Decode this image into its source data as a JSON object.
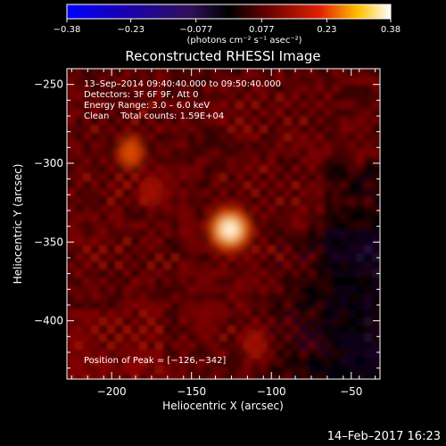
{
  "chart_data": {
    "type": "heatmap",
    "title": "Reconstructed RHESSI Image",
    "xlabel": "Heliocentric X (arcsec)",
    "ylabel": "Heliocentric Y (arcsec)",
    "xlim": [
      -228,
      -32
    ],
    "ylim": [
      -437,
      -240
    ],
    "x_ticks": [
      -200,
      -150,
      -100,
      -50
    ],
    "y_ticks": [
      -250,
      -300,
      -350,
      -400
    ],
    "x_tick_labels": [
      "−200",
      "−150",
      "−100",
      "−50"
    ],
    "y_tick_labels": [
      "−250",
      "−300",
      "−350",
      "−400"
    ],
    "colorbar": {
      "min": -0.38,
      "max": 0.38,
      "ticks": [
        -0.38,
        -0.23,
        -0.077,
        0.077,
        0.23,
        0.38
      ],
      "tick_labels": [
        "−0.38",
        "−0.23",
        "−0.077",
        "0.077",
        "0.23",
        "0.38"
      ],
      "unit_label": "(photons cm⁻² s⁻¹ asec⁻²)"
    },
    "annotations": [
      "13–Sep–2014 09:40:40.000 to 09:50:40.000",
      "Detectors: 3F 6F 9F, Att 0",
      "Energy Range: 3.0 – 6.0 keV",
      "Clean    Total counts: 1.59E+04"
    ],
    "peak_label": "Position of Peak = [−126,−342]",
    "peak": {
      "x": -126,
      "y": -342,
      "value": 0.38
    },
    "secondary_sources": [
      {
        "x": -188,
        "y": -293,
        "value": 0.2
      },
      {
        "x": -175,
        "y": -318,
        "value": 0.12
      },
      {
        "x": -110,
        "y": -415,
        "value": 0.11
      },
      {
        "x": -140,
        "y": -395,
        "value": 0.08
      }
    ],
    "colors": {
      "low": "#0000ff",
      "mid": "#000000",
      "high": "#ffffff"
    }
  },
  "timestamp": "14–Feb–2017 16:23"
}
